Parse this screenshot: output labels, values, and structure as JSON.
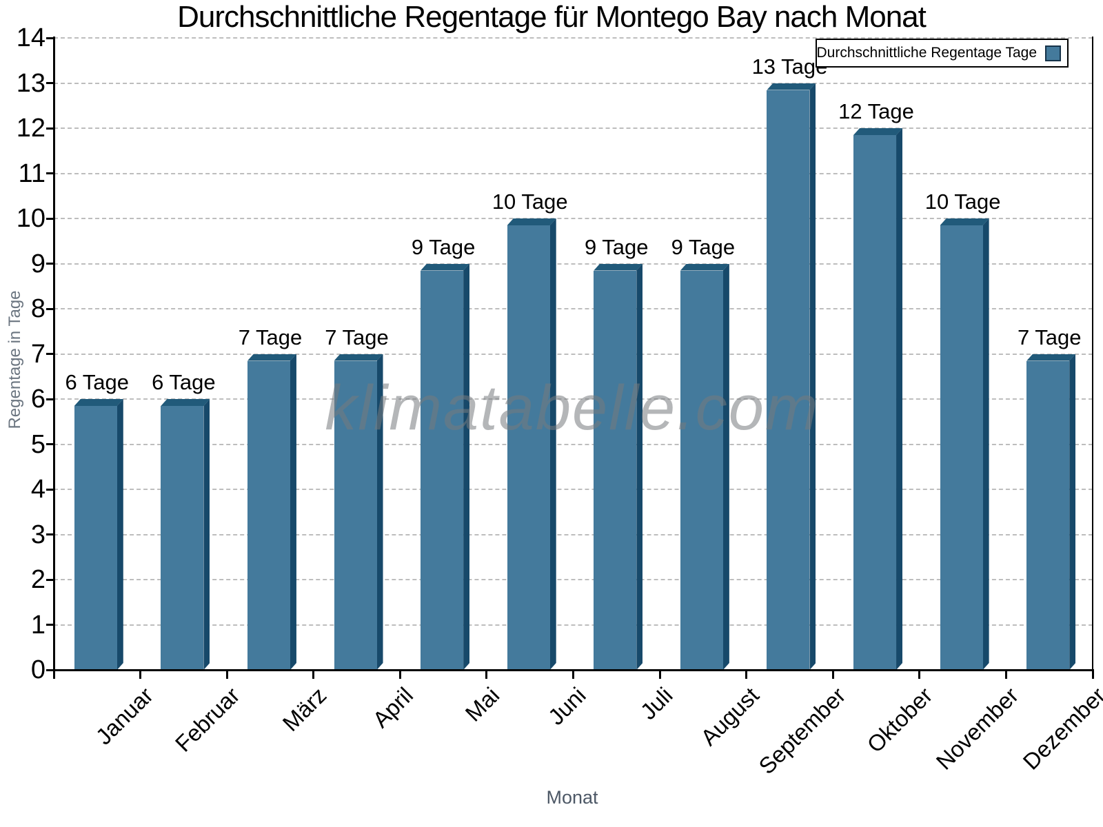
{
  "title": "Durchschnittliche Regentage für Montego Bay nach Monat",
  "watermark": "klimatabelle.com",
  "legend": {
    "label": "Durchschnittliche Regentage Tage"
  },
  "axes": {
    "y_label": "Regentage in Tage",
    "x_label": "Monat"
  },
  "chart_data": {
    "type": "bar",
    "title": "Durchschnittliche Regentage für Montego Bay nach Monat",
    "categories": [
      "Januar",
      "Februar",
      "März",
      "April",
      "Mai",
      "Juni",
      "Juli",
      "August",
      "September",
      "Oktober",
      "November",
      "Dezember"
    ],
    "values": [
      6,
      6,
      7,
      7,
      9,
      10,
      9,
      9,
      13,
      12,
      10,
      7
    ],
    "bar_labels": [
      "6 Tage",
      "6 Tage",
      "7 Tage",
      "7 Tage",
      "9 Tage",
      "10 Tage",
      "9 Tage",
      "9 Tage",
      "13 Tage",
      "12 Tage",
      "10 Tage",
      "7 Tage"
    ],
    "xlabel": "Monat",
    "ylabel": "Regentage in Tage",
    "ylim": [
      0,
      14
    ],
    "yticks": [
      0,
      1,
      2,
      3,
      4,
      5,
      6,
      7,
      8,
      9,
      10,
      11,
      12,
      13,
      14
    ],
    "grid": "horizontal-dashed",
    "legend": [
      "Durchschnittliche Regentage Tage"
    ],
    "legend_position": "top-right",
    "colors": {
      "bar_front": "#447a9c",
      "bar_side": "#17496a",
      "bar_top": "#215a7a",
      "legend_swatch": "#447a9c",
      "grid": "#bdbdbd",
      "axis": "#000000",
      "axis_title": "#5a6470",
      "watermark_gray": "#767a7e"
    }
  }
}
